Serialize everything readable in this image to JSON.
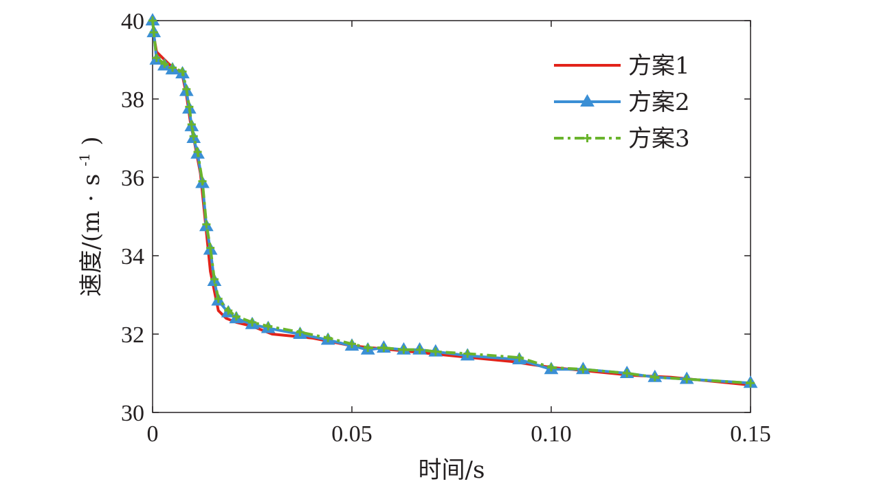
{
  "chart_data": {
    "type": "line",
    "title": "",
    "xlabel": "时间/s",
    "ylabel_main": "速度/(m",
    "ylabel_dot": "·",
    "ylabel_unit": "s",
    "ylabel_exp": "-1",
    "ylabel_close": ")",
    "xlim": [
      0,
      0.15
    ],
    "ylim": [
      30,
      40
    ],
    "x_ticks": [
      0,
      0.05,
      0.1,
      0.15
    ],
    "x_tick_labels": [
      "0",
      "0.05",
      "0.10",
      "0.15"
    ],
    "y_ticks": [
      30,
      32,
      34,
      36,
      38,
      40
    ],
    "y_tick_labels": [
      "30",
      "32",
      "34",
      "36",
      "38",
      "40"
    ],
    "grid": false,
    "legend_position": "top-right",
    "series": [
      {
        "name": "方案1",
        "color": "#e2231a",
        "style": "solid",
        "marker": "none",
        "x": [
          0,
          0.001,
          0.004,
          0.0075,
          0.0085,
          0.0095,
          0.0105,
          0.012,
          0.0135,
          0.0145,
          0.0155,
          0.0165,
          0.0185,
          0.021,
          0.025,
          0.03,
          0.04,
          0.05,
          0.06,
          0.07,
          0.08,
          0.09,
          0.1,
          0.11,
          0.12,
          0.13,
          0.14,
          0.15
        ],
        "y": [
          39.8,
          39.2,
          38.9,
          38.6,
          38.1,
          37.4,
          36.9,
          36.1,
          34.6,
          33.6,
          33.1,
          32.6,
          32.4,
          32.3,
          32.2,
          32.0,
          31.9,
          31.7,
          31.6,
          31.5,
          31.4,
          31.3,
          31.15,
          31.05,
          30.95,
          30.9,
          30.8,
          30.7
        ]
      },
      {
        "name": "方案2",
        "color": "#3b8fd5",
        "style": "solid",
        "marker": "triangle",
        "x": [
          0,
          0.0003,
          0.001,
          0.003,
          0.005,
          0.0075,
          0.0085,
          0.0092,
          0.0098,
          0.0103,
          0.0113,
          0.0125,
          0.0135,
          0.0145,
          0.0155,
          0.0165,
          0.019,
          0.021,
          0.025,
          0.029,
          0.037,
          0.044,
          0.05,
          0.054,
          0.058,
          0.063,
          0.067,
          0.071,
          0.079,
          0.092,
          0.1,
          0.108,
          0.119,
          0.126,
          0.134,
          0.15
        ],
        "y": [
          40.0,
          39.7,
          39.0,
          38.85,
          38.75,
          38.65,
          38.2,
          37.75,
          37.3,
          37.0,
          36.6,
          35.85,
          34.75,
          34.15,
          33.35,
          32.85,
          32.55,
          32.4,
          32.25,
          32.15,
          32.0,
          31.85,
          31.7,
          31.6,
          31.65,
          31.6,
          31.6,
          31.55,
          31.45,
          31.35,
          31.1,
          31.1,
          31.0,
          30.9,
          30.85,
          30.75
        ]
      },
      {
        "name": "方案3",
        "color": "#6ab42d",
        "style": "dashdot",
        "marker": "plus",
        "x": [
          0,
          0.0003,
          0.001,
          0.003,
          0.005,
          0.0075,
          0.0085,
          0.0092,
          0.0098,
          0.0103,
          0.0113,
          0.0125,
          0.0135,
          0.0145,
          0.0155,
          0.0165,
          0.019,
          0.021,
          0.025,
          0.029,
          0.037,
          0.044,
          0.05,
          0.054,
          0.058,
          0.063,
          0.067,
          0.071,
          0.079,
          0.092,
          0.1,
          0.108,
          0.119,
          0.126,
          0.134,
          0.15
        ],
        "y": [
          40.0,
          39.7,
          39.05,
          38.9,
          38.8,
          38.7,
          38.25,
          37.8,
          37.35,
          37.05,
          36.65,
          35.9,
          34.8,
          34.2,
          33.4,
          32.9,
          32.6,
          32.45,
          32.3,
          32.2,
          32.05,
          31.9,
          31.75,
          31.65,
          31.65,
          31.6,
          31.6,
          31.55,
          31.5,
          31.4,
          31.15,
          31.1,
          31.0,
          30.9,
          30.85,
          30.75
        ]
      }
    ]
  }
}
